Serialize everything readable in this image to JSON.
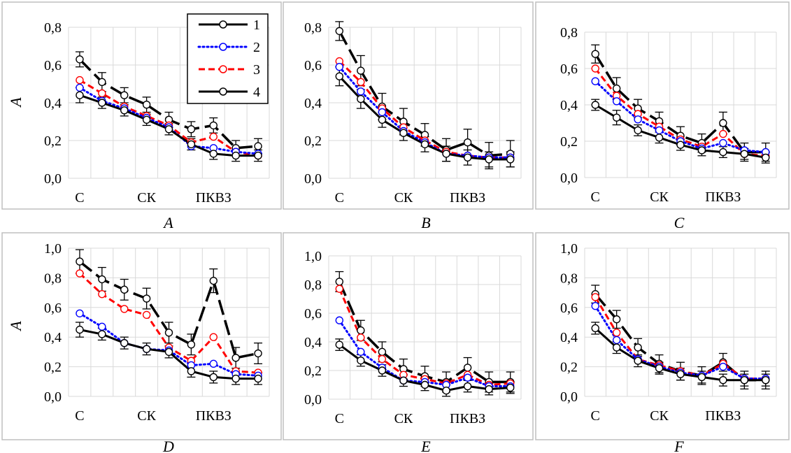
{
  "figure": {
    "y_axis_label": "A",
    "x_tick_labels": [
      "С",
      "СК",
      "ПКВЗ"
    ],
    "legend": [
      "1",
      "2",
      "3",
      "4"
    ],
    "panel_labels": [
      "A",
      "B",
      "C",
      "D",
      "E",
      "F"
    ]
  },
  "colors": {
    "series_1": "#000000",
    "series_2": "#0000ff",
    "series_3": "#ff0000",
    "series_4": "#000000",
    "grid": "#d9d9d9",
    "frame": "#bfbfbf",
    "panel_bg": "#ffffff"
  },
  "chart_data": [
    {
      "type": "line",
      "panel": "A",
      "ylabel": "A",
      "ylim": [
        0,
        0.8
      ],
      "yticks": [
        "0,0",
        "0,2",
        "0,4",
        "0,6",
        "0,8"
      ],
      "categories": [
        "С",
        "",
        "",
        "СК",
        "",
        "",
        "ПКВЗ",
        "",
        ""
      ],
      "show_legend": true,
      "series": [
        {
          "name": "1",
          "style": "solid",
          "values": [
            0.44,
            0.4,
            0.36,
            0.31,
            0.26,
            0.18,
            0.13,
            0.12,
            0.12
          ],
          "errors": [
            0.04,
            0.03,
            0.03,
            0.03,
            0.03,
            0.03,
            0.03,
            0.03,
            0.03
          ]
        },
        {
          "name": "2",
          "style": "dotted",
          "values": [
            0.48,
            0.41,
            0.37,
            0.32,
            0.27,
            0.17,
            0.16,
            0.14,
            0.13
          ]
        },
        {
          "name": "3",
          "style": "dashed",
          "values": [
            0.52,
            0.45,
            0.38,
            0.33,
            0.28,
            0.19,
            0.22,
            0.14,
            0.12
          ]
        },
        {
          "name": "4",
          "style": "longdash",
          "values": [
            0.63,
            0.51,
            0.44,
            0.39,
            0.31,
            0.26,
            0.28,
            0.16,
            0.17
          ],
          "errors": [
            0.04,
            0.05,
            0.04,
            0.04,
            0.04,
            0.04,
            0.04,
            0.04,
            0.04
          ]
        }
      ]
    },
    {
      "type": "line",
      "panel": "B",
      "ylabel": "",
      "ylim": [
        0,
        0.8
      ],
      "yticks": [
        "0,0",
        "0,2",
        "0,4",
        "0,6",
        "0,8"
      ],
      "categories": [
        "С",
        "",
        "",
        "СК",
        "",
        "",
        "ПКВЗ",
        "",
        ""
      ],
      "show_legend": false,
      "series": [
        {
          "name": "1",
          "style": "solid",
          "values": [
            0.54,
            0.42,
            0.31,
            0.24,
            0.18,
            0.13,
            0.11,
            0.1,
            0.1
          ],
          "errors": [
            0.05,
            0.05,
            0.04,
            0.04,
            0.04,
            0.04,
            0.04,
            0.04,
            0.04
          ]
        },
        {
          "name": "2",
          "style": "dotted",
          "values": [
            0.59,
            0.46,
            0.35,
            0.25,
            0.19,
            0.13,
            0.12,
            0.11,
            0.11
          ]
        },
        {
          "name": "3",
          "style": "dashed",
          "values": [
            0.62,
            0.51,
            0.37,
            0.27,
            0.2,
            0.14,
            0.12,
            0.11,
            0.11
          ]
        },
        {
          "name": "4",
          "style": "longdash",
          "values": [
            0.78,
            0.57,
            0.38,
            0.3,
            0.23,
            0.15,
            0.19,
            0.12,
            0.13
          ],
          "errors": [
            0.05,
            0.08,
            0.07,
            0.07,
            0.06,
            0.06,
            0.07,
            0.07,
            0.07
          ]
        }
      ]
    },
    {
      "type": "line",
      "panel": "C",
      "ylabel": "",
      "ylim": [
        0,
        0.8
      ],
      "yticks": [
        "0,0",
        "0,2",
        "0,4",
        "0,6",
        "0,8"
      ],
      "categories": [
        "С",
        "",
        "",
        "СК",
        "",
        "",
        "ПКВЗ",
        "",
        ""
      ],
      "show_legend": false,
      "series": [
        {
          "name": "1",
          "style": "solid",
          "values": [
            0.4,
            0.33,
            0.26,
            0.22,
            0.18,
            0.15,
            0.14,
            0.13,
            0.11
          ],
          "errors": [
            0.03,
            0.04,
            0.03,
            0.03,
            0.03,
            0.03,
            0.03,
            0.03,
            0.03
          ]
        },
        {
          "name": "2",
          "style": "dotted",
          "values": [
            0.53,
            0.42,
            0.32,
            0.26,
            0.2,
            0.16,
            0.19,
            0.15,
            0.14
          ]
        },
        {
          "name": "3",
          "style": "dashed",
          "values": [
            0.6,
            0.45,
            0.35,
            0.28,
            0.21,
            0.17,
            0.24,
            0.13,
            0.12
          ]
        },
        {
          "name": "4",
          "style": "longdash",
          "values": [
            0.68,
            0.49,
            0.38,
            0.31,
            0.23,
            0.19,
            0.3,
            0.14,
            0.14
          ],
          "errors": [
            0.05,
            0.06,
            0.05,
            0.05,
            0.05,
            0.05,
            0.06,
            0.05,
            0.05
          ]
        }
      ]
    },
    {
      "type": "line",
      "panel": "D",
      "ylabel": "A",
      "ylim": [
        0,
        1.0
      ],
      "yticks": [
        "0,0",
        "0,2",
        "0,4",
        "0,6",
        "0,8",
        "1,0"
      ],
      "categories": [
        "С",
        "",
        "",
        "СК",
        "",
        "",
        "ПКВЗ",
        "",
        ""
      ],
      "show_legend": false,
      "series": [
        {
          "name": "1",
          "style": "solid",
          "values": [
            0.45,
            0.42,
            0.36,
            0.32,
            0.3,
            0.17,
            0.13,
            0.12,
            0.12
          ],
          "errors": [
            0.05,
            0.04,
            0.04,
            0.04,
            0.04,
            0.04,
            0.04,
            0.04,
            0.04
          ]
        },
        {
          "name": "2",
          "style": "dotted",
          "values": [
            0.56,
            0.47,
            0.36,
            0.32,
            0.31,
            0.21,
            0.22,
            0.15,
            0.14
          ]
        },
        {
          "name": "3",
          "style": "dashed",
          "values": [
            0.83,
            0.69,
            0.59,
            0.55,
            0.33,
            0.24,
            0.4,
            0.17,
            0.16
          ]
        },
        {
          "name": "4",
          "style": "longdash",
          "values": [
            0.91,
            0.79,
            0.72,
            0.66,
            0.43,
            0.35,
            0.78,
            0.26,
            0.29
          ],
          "errors": [
            0.08,
            0.08,
            0.07,
            0.07,
            0.07,
            0.07,
            0.08,
            0.07,
            0.07
          ]
        }
      ]
    },
    {
      "type": "line",
      "panel": "E",
      "ylabel": "",
      "ylim": [
        0,
        1.0
      ],
      "yticks": [
        "0,0",
        "0,2",
        "0,4",
        "0,6",
        "0,8",
        "1,0"
      ],
      "categories": [
        "С",
        "",
        "",
        "СК",
        "",
        "",
        "ПКВЗ",
        "",
        ""
      ],
      "show_legend": false,
      "series": [
        {
          "name": "1",
          "style": "solid",
          "values": [
            0.38,
            0.27,
            0.2,
            0.13,
            0.1,
            0.06,
            0.09,
            0.07,
            0.08
          ],
          "errors": [
            0.04,
            0.04,
            0.04,
            0.04,
            0.04,
            0.04,
            0.04,
            0.04,
            0.04
          ]
        },
        {
          "name": "2",
          "style": "dotted",
          "values": [
            0.55,
            0.33,
            0.22,
            0.13,
            0.12,
            0.1,
            0.15,
            0.09,
            0.09
          ]
        },
        {
          "name": "3",
          "style": "dashed",
          "values": [
            0.77,
            0.43,
            0.28,
            0.17,
            0.14,
            0.11,
            0.17,
            0.1,
            0.11
          ]
        },
        {
          "name": "4",
          "style": "longdash",
          "values": [
            0.82,
            0.48,
            0.33,
            0.21,
            0.16,
            0.12,
            0.22,
            0.12,
            0.12
          ],
          "errors": [
            0.07,
            0.07,
            0.07,
            0.07,
            0.07,
            0.07,
            0.07,
            0.07,
            0.07
          ]
        }
      ]
    },
    {
      "type": "line",
      "panel": "F",
      "ylabel": "",
      "ylim": [
        0,
        1.0
      ],
      "yticks": [
        "0,0",
        "0,2",
        "0,4",
        "0,6",
        "0,8",
        "1,0"
      ],
      "categories": [
        "С",
        "",
        "",
        "СК",
        "",
        "",
        "ПКВЗ",
        "",
        ""
      ],
      "show_legend": false,
      "series": [
        {
          "name": "1",
          "style": "solid",
          "values": [
            0.46,
            0.33,
            0.24,
            0.19,
            0.15,
            0.13,
            0.11,
            0.11,
            0.11
          ],
          "errors": [
            0.04,
            0.04,
            0.04,
            0.04,
            0.04,
            0.04,
            0.04,
            0.04,
            0.04
          ]
        },
        {
          "name": "2",
          "style": "dotted",
          "values": [
            0.61,
            0.38,
            0.25,
            0.2,
            0.16,
            0.14,
            0.2,
            0.12,
            0.12
          ]
        },
        {
          "name": "3",
          "style": "dashed",
          "values": [
            0.67,
            0.43,
            0.25,
            0.21,
            0.17,
            0.14,
            0.22,
            0.12,
            0.12
          ]
        },
        {
          "name": "4",
          "style": "longdash",
          "values": [
            0.69,
            0.52,
            0.33,
            0.22,
            0.17,
            0.14,
            0.23,
            0.11,
            0.11
          ],
          "errors": [
            0.06,
            0.06,
            0.06,
            0.06,
            0.06,
            0.06,
            0.06,
            0.06,
            0.06
          ]
        }
      ]
    }
  ]
}
